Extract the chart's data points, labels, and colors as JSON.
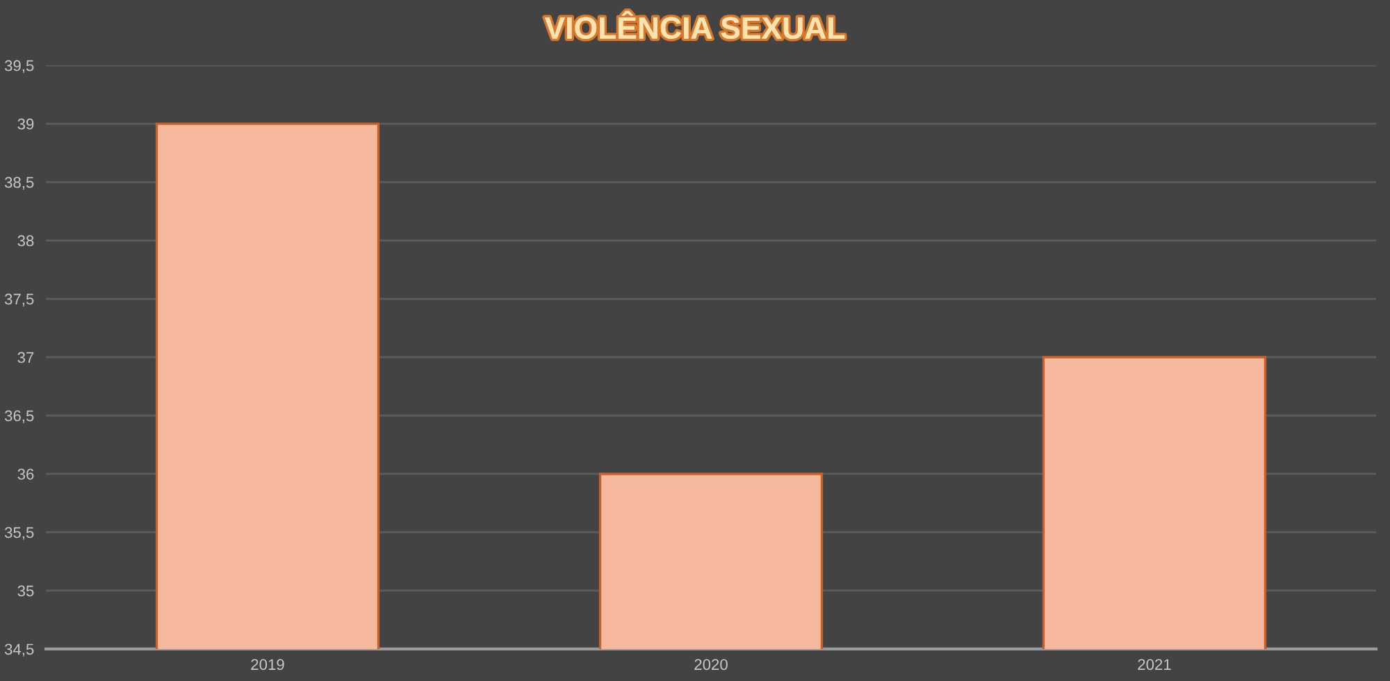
{
  "chart_data": {
    "type": "bar",
    "title": "VIOLÊNCIA SEXUAL",
    "categories": [
      "2019",
      "2020",
      "2021"
    ],
    "values": [
      39,
      36,
      37
    ],
    "color": "#f6b99d",
    "ylim": [
      34.5,
      39.5
    ],
    "yticks": [
      {
        "value": 34.5,
        "label": "34,5"
      },
      35,
      {
        "value": 35.5,
        "label": "35,5"
      },
      36,
      {
        "value": 36.5,
        "label": "36,5"
      },
      37,
      {
        "value": 37.5,
        "label": "37,5"
      },
      38,
      {
        "value": 38.5,
        "label": "38,5"
      },
      39,
      {
        "value": 39.5,
        "label": "39,5"
      }
    ],
    "grid": "y",
    "legend": false
  }
}
